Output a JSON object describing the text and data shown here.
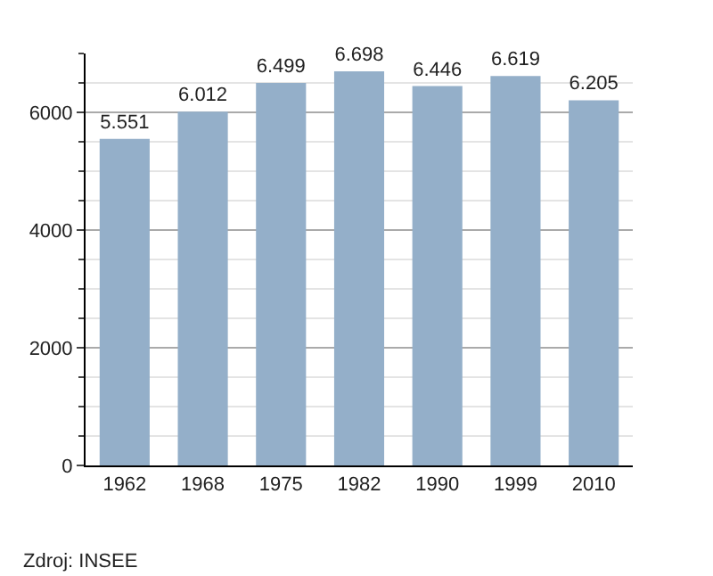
{
  "chart_data": {
    "type": "bar",
    "categories": [
      "1962",
      "1968",
      "1975",
      "1982",
      "1990",
      "1999",
      "2010"
    ],
    "values": [
      5551,
      6012,
      6499,
      6698,
      6446,
      6619,
      6205
    ],
    "value_labels": [
      "5.551",
      "6.012",
      "6.499",
      "6.698",
      "6.446",
      "6.619",
      "6.205"
    ],
    "color": "#94afc9",
    "ylim": [
      0,
      7000
    ],
    "yticks": [
      0,
      {
        "value": 500,
        "label": null
      },
      {
        "value": 1000,
        "label": null
      },
      {
        "value": 1500,
        "label": null
      },
      2000,
      {
        "value": 2500,
        "label": null
      },
      {
        "value": 3000,
        "label": null
      },
      {
        "value": 3500,
        "label": null
      },
      4000,
      {
        "value": 4500,
        "label": null
      },
      {
        "value": 5000,
        "label": null
      },
      {
        "value": 5500,
        "label": null
      },
      6000,
      {
        "value": 6500,
        "label": null
      },
      {
        "value": 7000,
        "label": null
      }
    ],
    "grid": "y",
    "annotations": [
      "Zdroj: INSEE"
    ]
  }
}
